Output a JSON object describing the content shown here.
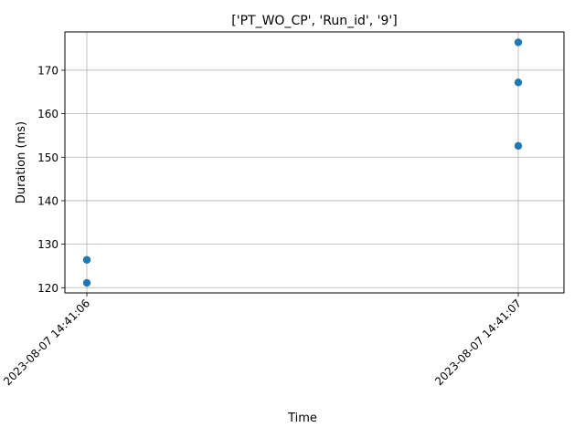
{
  "chart_data": {
    "type": "scatter",
    "title": "['PT_WO_CP', 'Run_id', '9']",
    "xlabel": "Time",
    "ylabel": "Duration (ms)",
    "x_ticks": [
      "2023-08-07 14:41:06",
      "2023-08-07 14:41:07"
    ],
    "y_ticks": [
      120,
      130,
      140,
      150,
      160,
      170
    ],
    "ylim": [
      118.8,
      178.8
    ],
    "grid": true,
    "marker_color": "#1f77b4",
    "points": [
      {
        "x": "2023-08-07 14:41:06",
        "y": 121.1
      },
      {
        "x": "2023-08-07 14:41:06",
        "y": 126.4
      },
      {
        "x": "2023-08-07 14:41:07",
        "y": 152.6
      },
      {
        "x": "2023-08-07 14:41:07",
        "y": 167.2
      },
      {
        "x": "2023-08-07 14:41:07",
        "y": 176.4
      }
    ]
  }
}
